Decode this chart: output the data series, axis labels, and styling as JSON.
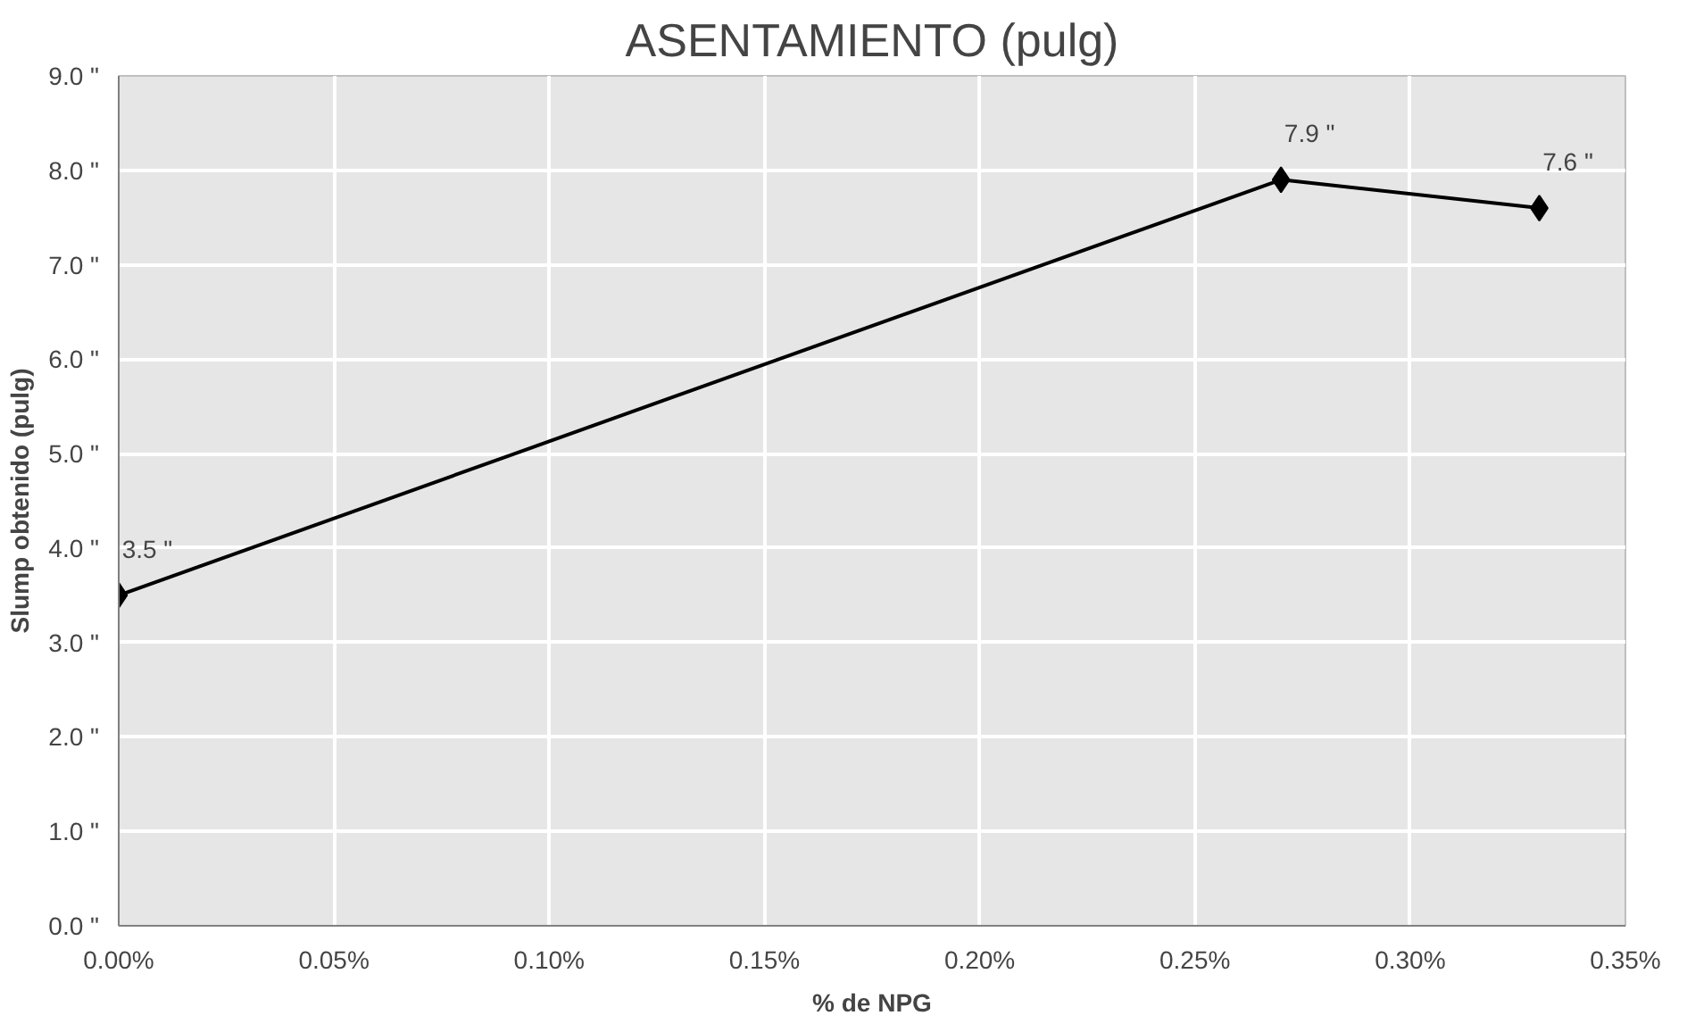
{
  "chart_data": {
    "type": "line",
    "title": "ASENTAMIENTO (pulg)",
    "xlabel": "% de NPG",
    "ylabel": "Slump obtenido (pulg)",
    "x": [
      0.0,
      0.27,
      0.33
    ],
    "series": [
      {
        "color": "#000000",
        "values": [
          3.5,
          7.9,
          7.6
        ],
        "value_labels": [
          "3.5 \"",
          "7.9 \"",
          "7.6 \""
        ]
      }
    ],
    "xlim": [
      0.0,
      0.35
    ],
    "ylim": [
      0.0,
      9.0
    ],
    "xticks": [
      {
        "value": 0.0,
        "label": "0.00%"
      },
      {
        "value": 0.05,
        "label": "0.05%"
      },
      {
        "value": 0.1,
        "label": "0.10%"
      },
      {
        "value": 0.15,
        "label": "0.15%"
      },
      {
        "value": 0.2,
        "label": "0.20%"
      },
      {
        "value": 0.25,
        "label": "0.25%"
      },
      {
        "value": 0.3,
        "label": "0.30%"
      },
      {
        "value": 0.35,
        "label": "0.35%"
      }
    ],
    "yticks": [
      {
        "value": 0.0,
        "label": "0.0 \""
      },
      {
        "value": 1.0,
        "label": "1.0 \""
      },
      {
        "value": 2.0,
        "label": "2.0 \""
      },
      {
        "value": 3.0,
        "label": "3.0 \""
      },
      {
        "value": 4.0,
        "label": "4.0 \""
      },
      {
        "value": 5.0,
        "label": "5.0 \""
      },
      {
        "value": 6.0,
        "label": "6.0 \""
      },
      {
        "value": 7.0,
        "label": "7.0 \""
      },
      {
        "value": 8.0,
        "label": "8.0 \""
      },
      {
        "value": 9.0,
        "label": "9.0 \""
      }
    ],
    "grid": true,
    "marker": "diamond",
    "line_style": "solid"
  }
}
